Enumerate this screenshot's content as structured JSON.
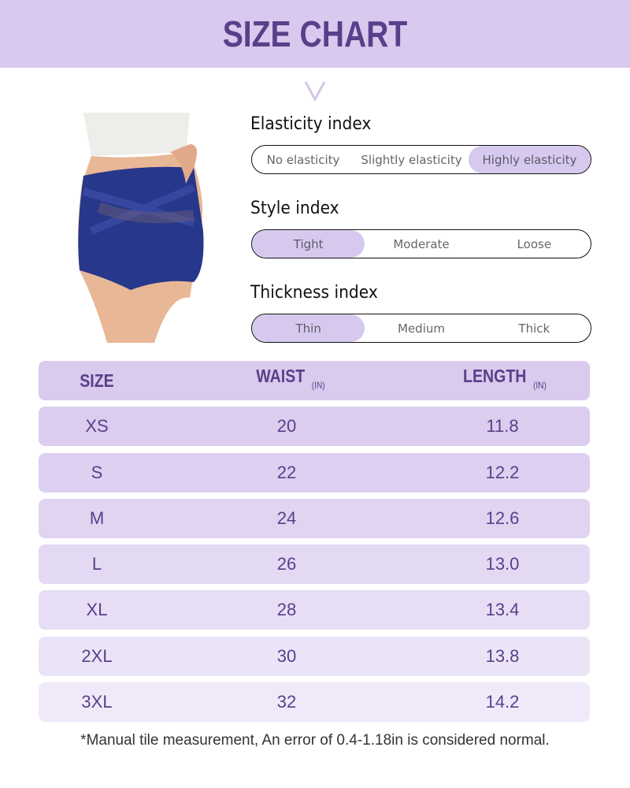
{
  "title": "SIZE CHART",
  "colors": {
    "header_bg": "#d9c9ee",
    "accent": "#5a3f8a",
    "highlight": "#d7c9ee"
  },
  "indices": [
    {
      "label": "Elasticity index",
      "options": [
        "No elasticity",
        "Slightly elasticity",
        "Highly elasticity"
      ],
      "selected": 2
    },
    {
      "label": "Style index",
      "options": [
        "Tight",
        "Moderate",
        "Loose"
      ],
      "selected": 0
    },
    {
      "label": "Thickness index",
      "options": [
        "Thin",
        "Medium",
        "Thick"
      ],
      "selected": 0
    }
  ],
  "table": {
    "headers": [
      {
        "label": "SIZE",
        "unit": ""
      },
      {
        "label": "WAIST",
        "unit": "(IN)"
      },
      {
        "label": "LENGTH",
        "unit": "(IN)"
      }
    ],
    "rows": [
      [
        "XS",
        "20",
        "11.8"
      ],
      [
        "S",
        "22",
        "12.2"
      ],
      [
        "M",
        "24",
        "12.6"
      ],
      [
        "L",
        "26",
        "13.0"
      ],
      [
        "XL",
        "28",
        "13.4"
      ],
      [
        "2XL",
        "30",
        "13.8"
      ],
      [
        "3XL",
        "32",
        "14.2"
      ]
    ]
  },
  "footnote": "*Manual tile measurement, An error of 0.4-1.18in is considered normal."
}
